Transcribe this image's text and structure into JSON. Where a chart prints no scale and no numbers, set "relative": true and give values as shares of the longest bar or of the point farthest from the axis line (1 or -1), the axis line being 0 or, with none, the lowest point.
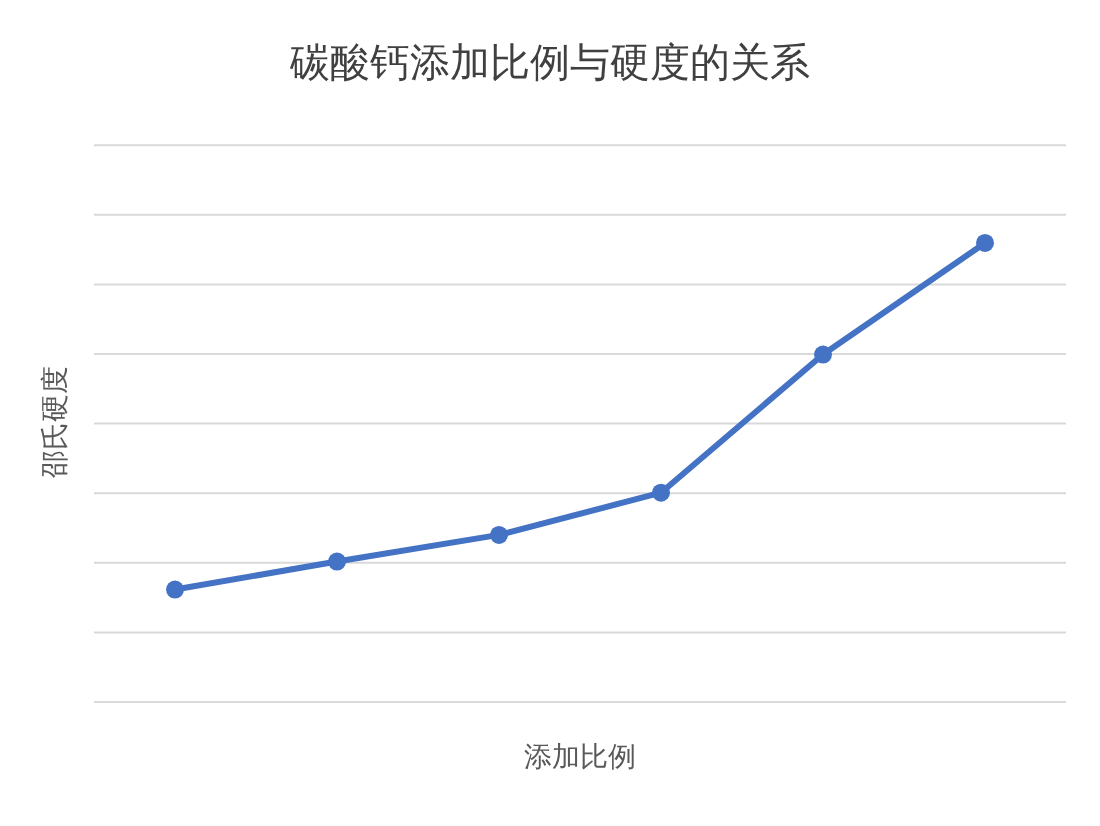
{
  "chart_data": {
    "type": "line",
    "title": "碳酸钙添加比例与硬度的关系",
    "xlabel": "添加比例",
    "ylabel": "邵氏硬度",
    "relative": true,
    "grid": "y",
    "marker": "circle",
    "line_style": "solid",
    "categories": [
      null,
      null,
      null,
      null,
      null,
      null
    ],
    "series": [
      {
        "color": "#4472c4",
        "values": [
          0.245,
          0.306,
          0.364,
          0.456,
          0.757,
          1
        ]
      }
    ]
  }
}
